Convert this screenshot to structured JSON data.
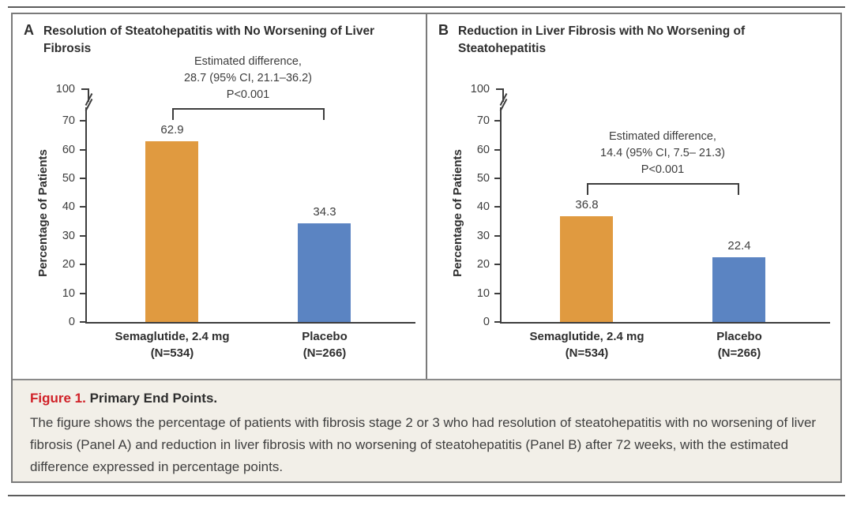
{
  "colors": {
    "semaglutide_bar": "#e09a40",
    "placebo_bar": "#5b84c2",
    "axis_text": "#3d3d3d",
    "figure_label_red": "#d02027",
    "caption_background": "#f2efe8",
    "box_border": "#7a7a7a"
  },
  "caption": {
    "figure_label": "Figure 1.",
    "figure_title": "Primary End Points.",
    "body": "The figure shows the percentage of patients with fibrosis stage 2 or 3 who had resolution of steatohepatitis with no worsening of liver fibrosis (Panel A) and reduction in liver fibrosis with no worsening of steatohepatitis (Panel B) after 72 weeks, with the estimated difference expressed in percentage points."
  },
  "chart_data": [
    {
      "type": "bar",
      "panel_label": "A",
      "title": "Resolution of Steatohepatitis with No Worsening of Liver Fibrosis",
      "ylabel": "Percentage of Patients",
      "ylim": [
        0,
        100
      ],
      "y_ticks": [
        0,
        10,
        20,
        30,
        40,
        50,
        60,
        70
      ],
      "y_axis_break": {
        "between": [
          70,
          100
        ],
        "top_tick_label": "100"
      },
      "categories": [
        "Semaglutide, 2.4 mg",
        "Placebo"
      ],
      "category_ns": [
        "(N=534)",
        "(N=266)"
      ],
      "values": [
        62.9,
        34.3
      ],
      "bar_color_keys": [
        "semaglutide_bar",
        "placebo_bar"
      ],
      "annotation_lines": [
        "Estimated difference,",
        "28.7 (95% CI, 21.1–36.2)",
        "P<0.001"
      ]
    },
    {
      "type": "bar",
      "panel_label": "B",
      "title": "Reduction in Liver Fibrosis with No Worsening of Steatohepatitis",
      "ylabel": "Percentage of Patients",
      "ylim": [
        0,
        100
      ],
      "y_ticks": [
        0,
        10,
        20,
        30,
        40,
        50,
        60,
        70
      ],
      "y_axis_break": {
        "between": [
          70,
          100
        ],
        "top_tick_label": "100"
      },
      "categories": [
        "Semaglutide, 2.4 mg",
        "Placebo"
      ],
      "category_ns": [
        "(N=534)",
        "(N=266)"
      ],
      "values": [
        36.8,
        22.4
      ],
      "bar_color_keys": [
        "semaglutide_bar",
        "placebo_bar"
      ],
      "annotation_lines": [
        "Estimated difference,",
        "14.4 (95% CI, 7.5– 21.3)",
        "P<0.001"
      ]
    }
  ]
}
